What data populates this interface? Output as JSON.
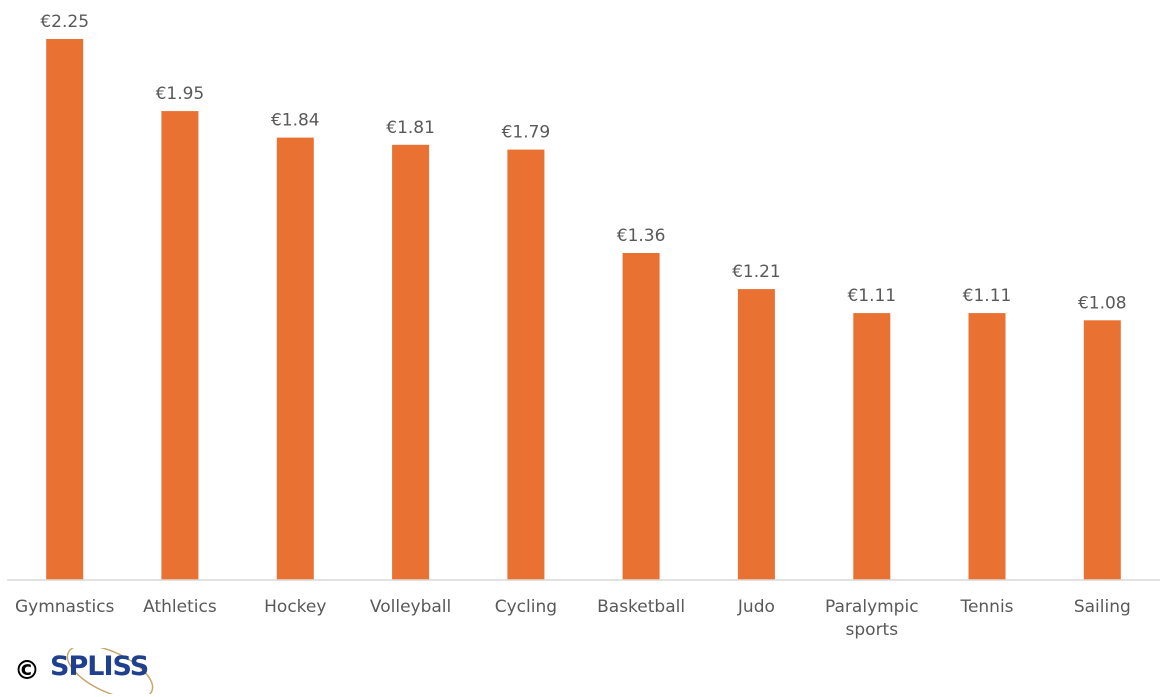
{
  "chart_data": {
    "type": "bar",
    "categories": [
      "Gymnastics",
      "Athletics",
      "Hockey",
      "Volleyball",
      "Cycling",
      "Basketball",
      "Judo",
      [
        "Paralympic",
        "sports"
      ],
      "Tennis",
      "Sailing"
    ],
    "values": [
      2.25,
      1.95,
      1.84,
      1.81,
      1.79,
      1.36,
      1.21,
      1.11,
      1.11,
      1.08
    ],
    "labels": [
      "€2.25",
      "€1.95",
      "€1.84",
      "€1.81",
      "€1.79",
      "€1.36",
      "€1.21",
      "€1.11",
      "€1.11",
      "€1.08"
    ],
    "ylim": [
      0,
      2.25
    ],
    "grid": false,
    "colors": {
      "bar": "#E97132",
      "text": "#595959",
      "axis": "#D9D9D9"
    }
  },
  "footer": {
    "copyright_symbol": "©",
    "logo_text": "SPLISS"
  }
}
